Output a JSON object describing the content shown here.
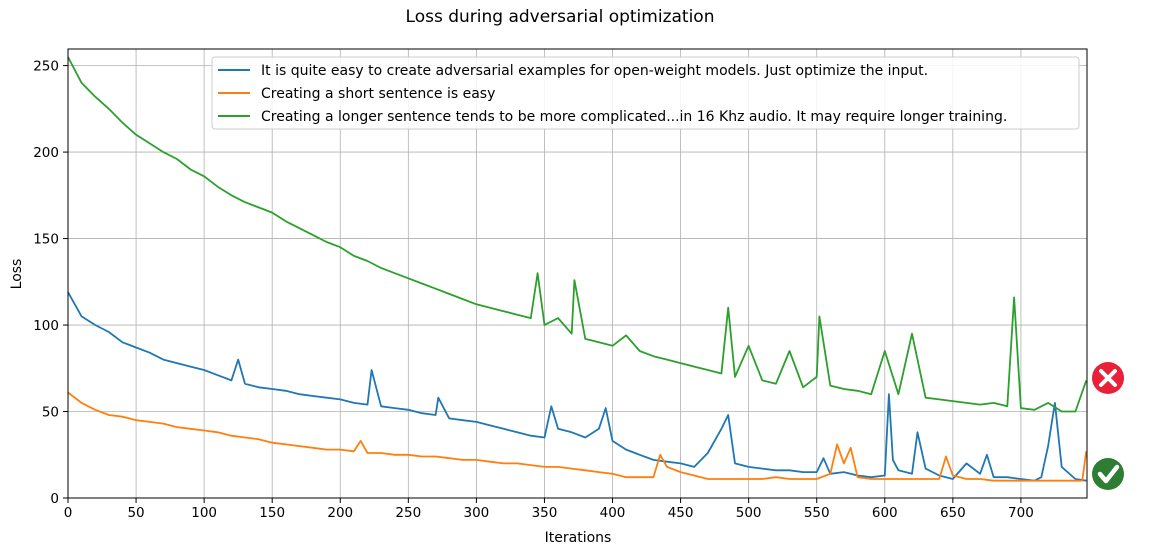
{
  "chart_data": {
    "type": "line",
    "title": "Loss during adversarial optimization",
    "xlabel": "Iterations",
    "ylabel": "Loss",
    "xlim": [
      0,
      750
    ],
    "ylim": [
      0,
      260
    ],
    "xticks": [
      0,
      50,
      100,
      150,
      200,
      250,
      300,
      350,
      400,
      450,
      500,
      550,
      600,
      650,
      700
    ],
    "yticks": [
      0,
      50,
      100,
      150,
      200,
      250
    ],
    "grid": true,
    "legend_position": "top-right",
    "series": [
      {
        "name": "It is quite easy to create adversarial examples for open-weight models. Just optimize the input.",
        "color": "#1f77b4",
        "x": [
          0,
          10,
          20,
          30,
          40,
          50,
          60,
          70,
          80,
          90,
          100,
          110,
          120,
          125,
          130,
          140,
          150,
          160,
          170,
          180,
          190,
          200,
          210,
          220,
          223,
          230,
          240,
          250,
          260,
          270,
          272,
          280,
          290,
          300,
          310,
          320,
          330,
          340,
          350,
          355,
          360,
          370,
          380,
          390,
          395,
          400,
          410,
          420,
          430,
          440,
          450,
          460,
          470,
          480,
          485,
          490,
          500,
          510,
          520,
          530,
          540,
          550,
          555,
          560,
          570,
          580,
          590,
          600,
          603,
          606,
          610,
          620,
          624,
          630,
          640,
          650,
          660,
          670,
          675,
          680,
          690,
          700,
          710,
          715,
          720,
          725,
          730,
          740,
          748
        ],
        "y": [
          119,
          105,
          100,
          96,
          90,
          87,
          84,
          80,
          78,
          76,
          74,
          71,
          68,
          80,
          66,
          64,
          63,
          62,
          60,
          59,
          58,
          57,
          55,
          54,
          74,
          53,
          52,
          51,
          49,
          48,
          58,
          46,
          45,
          44,
          42,
          40,
          38,
          36,
          35,
          53,
          40,
          38,
          35,
          40,
          52,
          33,
          28,
          25,
          22,
          21,
          20,
          18,
          26,
          40,
          48,
          20,
          18,
          17,
          16,
          16,
          15,
          15,
          23,
          14,
          15,
          13,
          12,
          13,
          60,
          22,
          16,
          14,
          38,
          17,
          13,
          11,
          20,
          14,
          25,
          12,
          12,
          11,
          10,
          12,
          30,
          55,
          18,
          11,
          10
        ]
      },
      {
        "name": "Creating a short sentence is easy",
        "color": "#ff7f0e",
        "x": [
          0,
          10,
          20,
          30,
          40,
          50,
          60,
          70,
          80,
          90,
          100,
          110,
          120,
          130,
          140,
          150,
          160,
          170,
          180,
          190,
          200,
          210,
          215,
          220,
          230,
          240,
          250,
          260,
          270,
          280,
          290,
          300,
          310,
          320,
          330,
          340,
          350,
          360,
          370,
          380,
          390,
          400,
          410,
          420,
          430,
          435,
          440,
          450,
          460,
          470,
          480,
          490,
          500,
          510,
          520,
          530,
          540,
          550,
          560,
          565,
          570,
          575,
          580,
          590,
          600,
          610,
          620,
          630,
          640,
          645,
          650,
          660,
          670,
          680,
          690,
          700,
          710,
          720,
          730,
          740,
          745,
          748
        ],
        "y": [
          61,
          55,
          51,
          48,
          47,
          45,
          44,
          43,
          41,
          40,
          39,
          38,
          36,
          35,
          34,
          32,
          31,
          30,
          29,
          28,
          28,
          27,
          33,
          26,
          26,
          25,
          25,
          24,
          24,
          23,
          22,
          22,
          21,
          20,
          20,
          19,
          18,
          18,
          17,
          16,
          15,
          14,
          12,
          12,
          12,
          25,
          18,
          15,
          13,
          11,
          11,
          11,
          11,
          11,
          12,
          11,
          11,
          11,
          14,
          31,
          20,
          29,
          12,
          11,
          11,
          11,
          11,
          11,
          11,
          24,
          13,
          11,
          11,
          10,
          10,
          10,
          10,
          10,
          10,
          10,
          10,
          27
        ]
      },
      {
        "name": "Creating a longer sentence tends to be more complicated...in 16 Khz audio. It may require longer training.",
        "color": "#2ca02c",
        "x": [
          0,
          10,
          20,
          30,
          40,
          50,
          60,
          70,
          80,
          90,
          100,
          110,
          120,
          130,
          140,
          150,
          160,
          170,
          180,
          190,
          200,
          210,
          220,
          230,
          240,
          250,
          260,
          270,
          280,
          290,
          300,
          310,
          320,
          330,
          340,
          345,
          350,
          360,
          370,
          372,
          380,
          390,
          400,
          410,
          420,
          430,
          440,
          450,
          460,
          470,
          480,
          485,
          490,
          500,
          510,
          520,
          530,
          540,
          550,
          552,
          560,
          570,
          580,
          590,
          600,
          610,
          620,
          630,
          640,
          650,
          660,
          670,
          680,
          690,
          695,
          700,
          710,
          720,
          730,
          740,
          748
        ],
        "y": [
          255,
          240,
          232,
          225,
          217,
          210,
          205,
          200,
          196,
          190,
          186,
          180,
          175,
          171,
          168,
          165,
          160,
          156,
          152,
          148,
          145,
          140,
          137,
          133,
          130,
          127,
          124,
          121,
          118,
          115,
          112,
          110,
          108,
          106,
          104,
          130,
          100,
          104,
          95,
          126,
          92,
          90,
          88,
          94,
          85,
          82,
          80,
          78,
          76,
          74,
          72,
          110,
          70,
          88,
          68,
          66,
          85,
          64,
          70,
          105,
          65,
          63,
          62,
          60,
          85,
          60,
          95,
          58,
          57,
          56,
          55,
          54,
          55,
          53,
          116,
          52,
          51,
          55,
          50,
          50,
          68
        ]
      }
    ]
  },
  "status_icons": [
    {
      "name": "failure-icon",
      "color": "#e8203a"
    },
    {
      "name": "success-icon",
      "color": "#2e7d32"
    }
  ]
}
